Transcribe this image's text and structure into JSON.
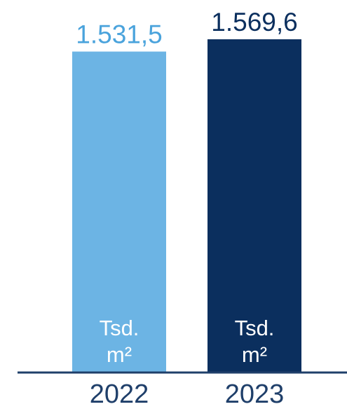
{
  "chart_data": {
    "type": "bar",
    "categories": [
      "2022",
      "2023"
    ],
    "values": [
      1531.5,
      1569.6
    ],
    "value_labels": [
      "1.531,5",
      "1.569,6"
    ],
    "unit_label": [
      "Tsd.",
      "m²"
    ],
    "colors": [
      "#6cb4e4",
      "#0b2f5e"
    ],
    "value_label_colors": [
      "#4aa3dc",
      "#0b2f5e"
    ],
    "axis_color": "#1f3f6a",
    "grid": false,
    "legend": "none"
  }
}
